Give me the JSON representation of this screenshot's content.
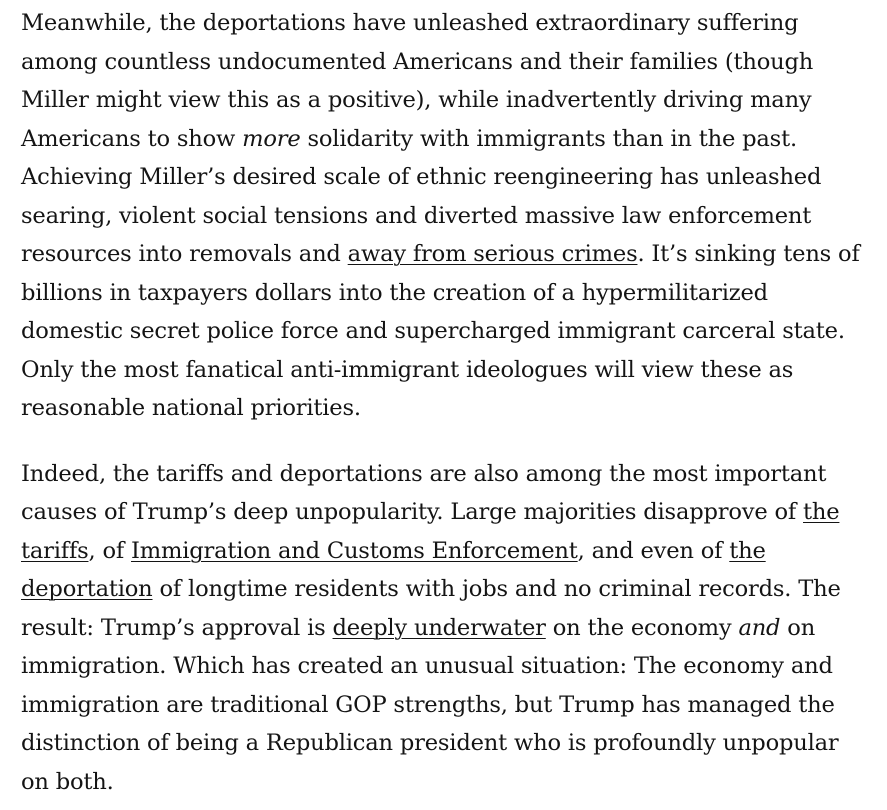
{
  "article": {
    "paragraphs": [
      {
        "s0": "Meanwhile, the deportations have unleashed extraordinary suffering among countless undocumented Americans and their families (though Miller might view this as a positive), while inadvertently driving many Americans to show ",
        "em0": "more",
        "s1": " solidarity with immigrants than in the past. Achieving Miller’s desired scale of ethnic reengineering has unleashed searing, violent social tensions and diverted massive law enforcement resources into removals and ",
        "link0": "away from serious crimes",
        "s2": ". It’s sinking tens of billions in taxpayers dollars into the creation of a hypermilitarized domestic secret police force and supercharged immigrant carceral state. Only the most fanatical anti-immigrant ideologues will view these as reasonable national priorities."
      },
      {
        "s0": "Indeed, the tariffs and deportations are also among the most important causes of Trump’s deep unpopularity. Large majorities disapprove of ",
        "link0": "the tariffs",
        "s1": ", of ",
        "link1": "Immigration and Customs Enforcement",
        "s2": ", and even of ",
        "link2": "the deportation",
        "s3": " of longtime residents with jobs and no criminal records. The result: Trump’s approval is ",
        "link3": "deeply underwater",
        "s4": " on the economy ",
        "em0": "and",
        "s5": " on immigration. Which has created an unusual situation: The economy and immigration are traditional GOP strengths, but Trump has managed the distinction of being a Republican president who is profoundly unpopular on both."
      }
    ]
  }
}
